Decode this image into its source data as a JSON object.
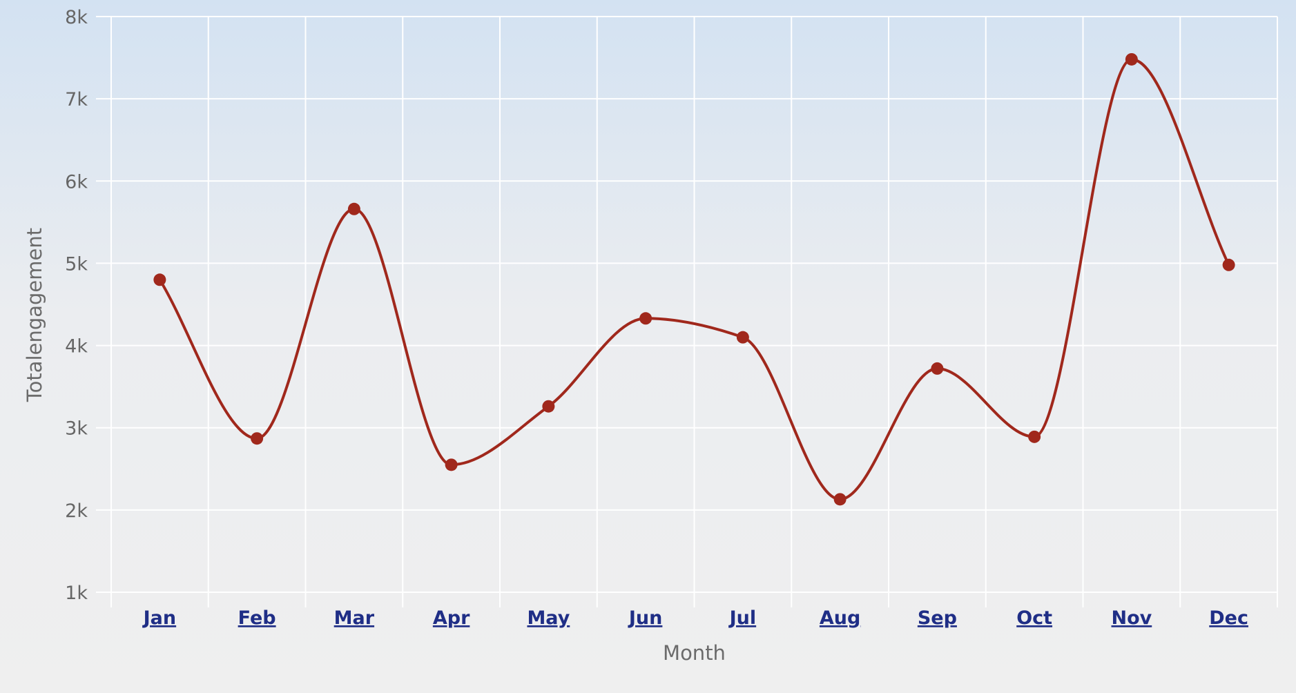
{
  "chart_data": {
    "type": "line",
    "smooth": true,
    "categories": [
      "Jan",
      "Feb",
      "Mar",
      "Apr",
      "May",
      "Jun",
      "Jul",
      "Aug",
      "Sep",
      "Oct",
      "Nov",
      "Dec"
    ],
    "series": [
      {
        "values": [
          4800,
          2870,
          5660,
          2550,
          3260,
          4330,
          4100,
          2130,
          3720,
          2890,
          7480,
          4980
        ]
      }
    ],
    "xlabel": "Month",
    "ylabel": "Totalengagement",
    "ylim": [
      1000,
      8000
    ],
    "yticks": [
      1000,
      2000,
      3000,
      4000,
      5000,
      6000,
      7000,
      8000
    ],
    "ytick_labels": [
      "1k",
      "2k",
      "3k",
      "4k",
      "5k",
      "6k",
      "7k",
      "8k"
    ],
    "grid": true,
    "x_tick_labels_are_links": true,
    "colors": {
      "line": "#a0281c",
      "marker": "#a0281c",
      "x_tick_link": "#1f2e86",
      "background_top": "#d3e2f2",
      "background_bottom": "#efefef",
      "grid": "#ffffff"
    }
  }
}
